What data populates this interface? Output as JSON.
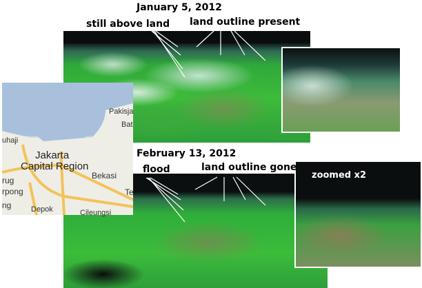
{
  "top": {
    "date": "January 5, 2012",
    "label_left": "still above land",
    "label_right": "land outline present"
  },
  "bottom": {
    "date": "February 13, 2012",
    "label_left": "flood",
    "label_right": "land outline gone",
    "inset_label": "zoomed x2"
  },
  "map": {
    "labels": [
      "Pakisja",
      "Bat",
      "uhaji",
      "Jakarta",
      "Capital Region",
      "Bekasi",
      "rug",
      "rpong",
      "ng",
      "Depok",
      "Cileungsi",
      "Te"
    ]
  }
}
